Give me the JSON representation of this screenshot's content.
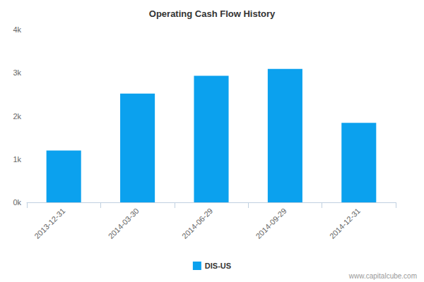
{
  "chart_data": {
    "type": "bar",
    "title": "Operating Cash Flow History",
    "categories": [
      "2013-12-31",
      "2014-03-30",
      "2014-06-29",
      "2014-09-29",
      "2014-12-31"
    ],
    "series": [
      {
        "name": "DIS-US",
        "color": "#0ba1ee",
        "values": [
          1200,
          2520,
          2930,
          3090,
          1840
        ]
      }
    ],
    "ylim": [
      0,
      4000
    ],
    "yticks": [
      {
        "value": 0,
        "label": "0k"
      },
      {
        "value": 1000,
        "label": "1k"
      },
      {
        "value": 2000,
        "label": "2k"
      },
      {
        "value": 3000,
        "label": "3k"
      },
      {
        "value": 4000,
        "label": "4k"
      }
    ],
    "grid": false,
    "legend": "bottom",
    "annotations": [
      "www.capitalcube.com"
    ]
  }
}
